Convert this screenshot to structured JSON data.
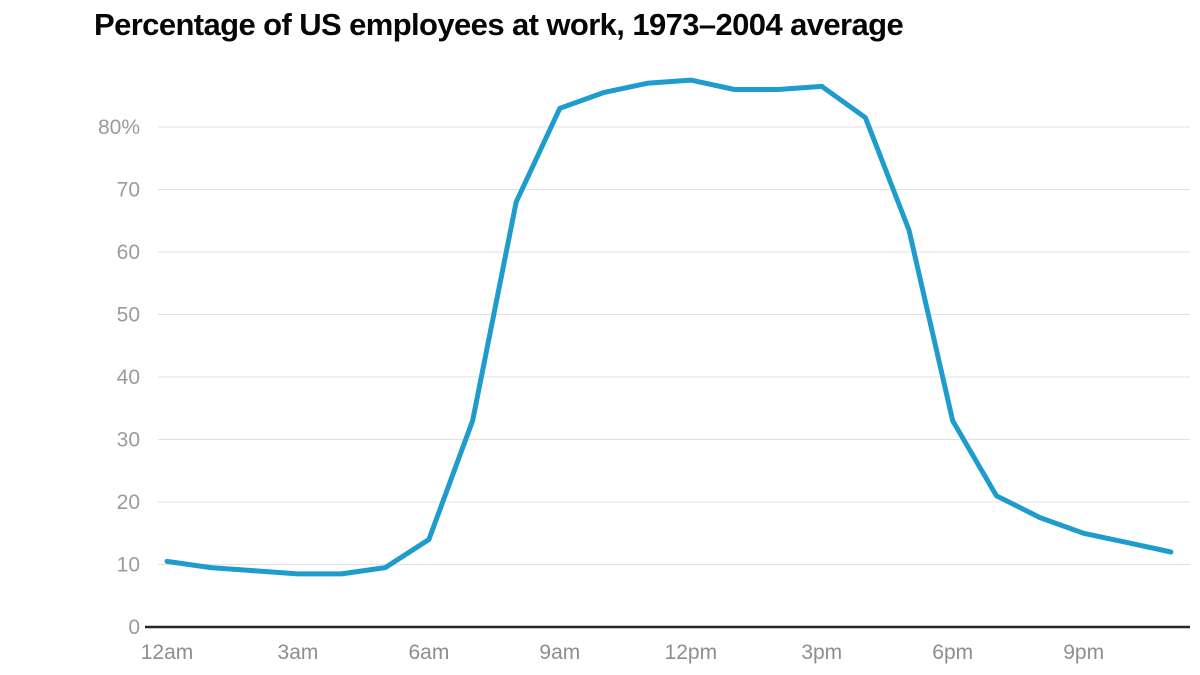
{
  "header": {
    "title": "Percentage of US employees at work, 1973–2004 average"
  },
  "colors": {
    "background": "#ffffff",
    "line": "#1E9CCD",
    "grid": "#E1E1E1",
    "axis_baseline": "#262626",
    "y_tick_label": "#9B9B9B",
    "x_tick_label": "#8E8E8E",
    "title": "#070707"
  },
  "chart_data": {
    "type": "line",
    "title": "Percentage of US employees at work, 1973–2004 average",
    "xlabel": "",
    "ylabel": "",
    "grid": true,
    "legend_position": "none",
    "x_hours": [
      0,
      1,
      2,
      3,
      4,
      5,
      6,
      7,
      8,
      9,
      10,
      11,
      12,
      13,
      14,
      15,
      16,
      17,
      18,
      19,
      20,
      21,
      22,
      23
    ],
    "x_hour_labels": [
      "12am",
      "1am",
      "2am",
      "3am",
      "4am",
      "5am",
      "6am",
      "7am",
      "8am",
      "9am",
      "10am",
      "11am",
      "12pm",
      "1pm",
      "2pm",
      "3pm",
      "4pm",
      "5pm",
      "6pm",
      "7pm",
      "8pm",
      "9pm",
      "10pm",
      "11pm"
    ],
    "series": [
      {
        "name": "Percentage of US employees at work",
        "color": "#1E9CCD",
        "values": [
          10.5,
          9.5,
          9,
          8.5,
          8.5,
          9.5,
          14,
          33,
          68,
          83,
          85.5,
          87,
          87.5,
          86,
          86,
          86.5,
          81.5,
          63.5,
          33,
          21,
          17.5,
          15,
          13.5,
          12
        ]
      }
    ],
    "x_axis_tick_hours": [
      0,
      3,
      6,
      9,
      12,
      15,
      18,
      21
    ],
    "x_axis_tick_labels": [
      "12am",
      "3am",
      "6am",
      "9am",
      "12pm",
      "3pm",
      "6pm",
      "9pm"
    ],
    "y_axis_ticks": [
      0,
      10,
      20,
      30,
      40,
      50,
      60,
      70,
      80
    ],
    "y_axis_tick_labels": [
      "0",
      "10",
      "20",
      "30",
      "40",
      "50",
      "60",
      "70",
      "80%"
    ],
    "ylim": [
      0,
      90
    ],
    "xlim_hours": [
      0,
      23.5
    ]
  }
}
